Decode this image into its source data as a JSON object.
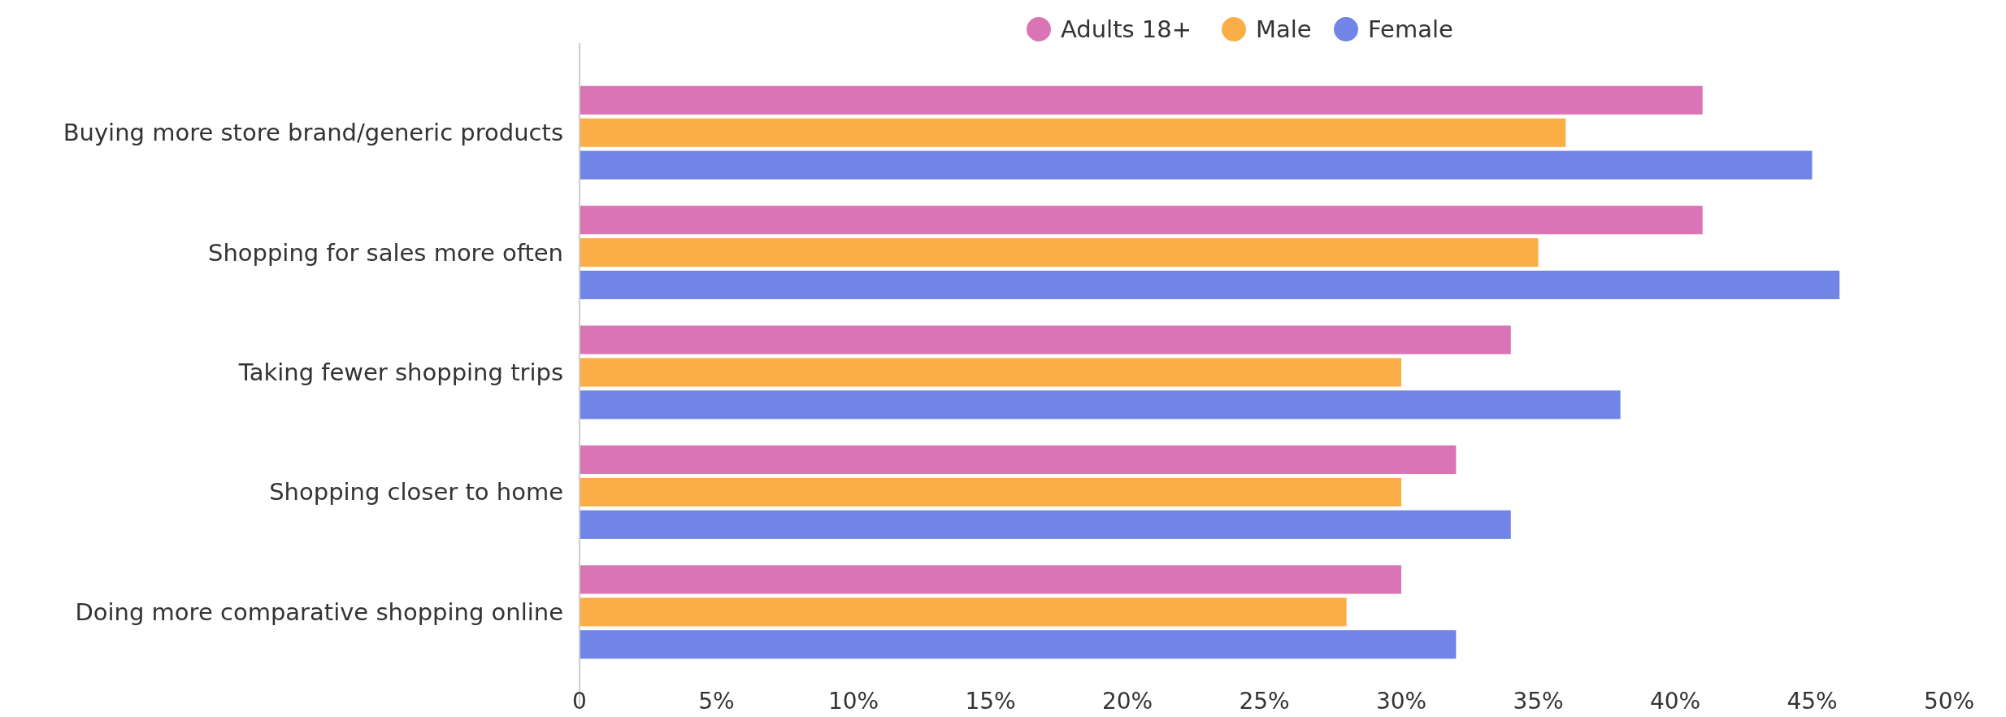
{
  "chart_data": {
    "type": "bar",
    "orientation": "horizontal",
    "categories": [
      "Buying more store brand/generic products",
      "Shopping for sales more often",
      "Taking fewer shopping trips",
      "Shopping closer to home",
      "Doing more comparative shopping online"
    ],
    "series": [
      {
        "name": "Adults 18+",
        "color": "#d975b4",
        "values": [
          41,
          41,
          34,
          32,
          30
        ]
      },
      {
        "name": "Male",
        "color": "#fbae45",
        "values": [
          36,
          35,
          30,
          30,
          28
        ]
      },
      {
        "name": "Female",
        "color": "#7085e5",
        "values": [
          45,
          46,
          38,
          34,
          32
        ]
      }
    ],
    "xlim": [
      0,
      50
    ],
    "xticks": [
      0,
      {
        "value": 5,
        "label": "5%"
      },
      {
        "value": 10,
        "label": "10%"
      },
      {
        "value": 15,
        "label": "15%"
      },
      {
        "value": 20,
        "label": "20%"
      },
      {
        "value": 25,
        "label": "25%"
      },
      {
        "value": 30,
        "label": "30%"
      },
      {
        "value": 35,
        "label": "35%"
      },
      {
        "value": 40,
        "label": "40%"
      },
      {
        "value": 45,
        "label": "45%"
      },
      {
        "value": 50,
        "label": "50%"
      }
    ],
    "grid": false,
    "legend": "top"
  }
}
